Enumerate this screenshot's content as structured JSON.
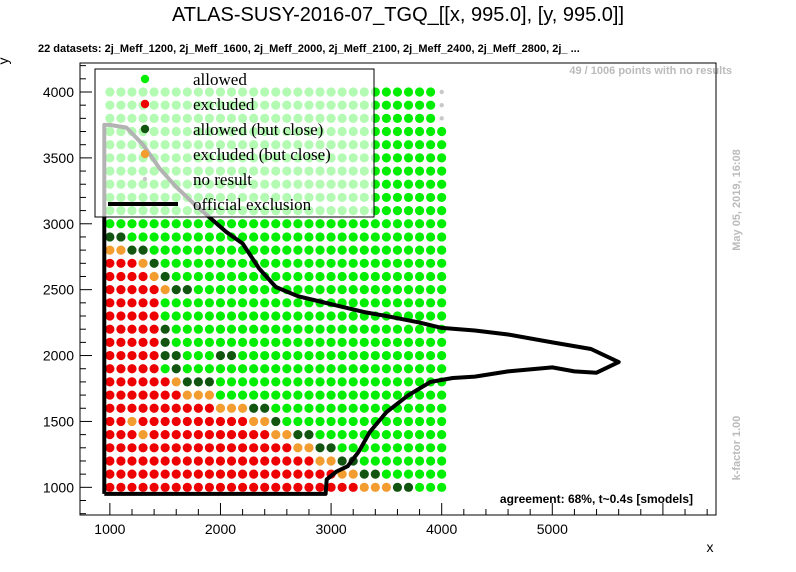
{
  "title": "ATLAS-SUSY-2016-07_TGQ_[[x, 995.0], [y, 995.0]]",
  "subtitle": "22 datasets: 2j_Meff_1200, 2j_Meff_1600, 2j_Meff_2000, 2j_Meff_2100, 2j_Meff_2400, 2j_Meff_2800, 2j_ ...",
  "no_results_note": "49 / 1006 points with no results",
  "date_stamp": "May 05, 2019, 16:08",
  "kfactor": "k-factor 1.00",
  "agreement": "agreement: 68%, t~0.4s [smodels]",
  "colors": {
    "allowed": "#00ee00",
    "excluded": "#ee0000",
    "allowed_close": "#115511",
    "excluded_close": "#f39c30",
    "no_result": "#c8c8c8",
    "official": "#000000"
  },
  "chart_data": {
    "type": "scatter",
    "title": "ATLAS-SUSY-2016-07_TGQ_[[x, 995.0], [y, 995.0]]",
    "xlabel": "x",
    "ylabel": "y",
    "xlim": [
      730,
      6480
    ],
    "ylim": [
      790,
      4220
    ],
    "xticks": [
      "1000",
      "2000",
      "3000",
      "4000",
      "5000"
    ],
    "yticks": [
      "1000",
      "1500",
      "2000",
      "2500",
      "3000",
      "3500",
      "4000"
    ],
    "grid": false,
    "legend_position": "top-left",
    "legend": [
      {
        "key": "allowed",
        "label": "allowed"
      },
      {
        "key": "excluded",
        "label": "excluded"
      },
      {
        "key": "allowed_close",
        "label": "allowed (but close)"
      },
      {
        "key": "excluded_close",
        "label": "excluded (but close)"
      },
      {
        "key": "no_result",
        "label": "no result"
      },
      {
        "key": "official",
        "label": "official exclusion"
      }
    ],
    "grid_points": {
      "x_start": 1000,
      "x_end": 4000,
      "x_step": 100,
      "y_start": 1000,
      "y_end": 4000,
      "y_step": 100
    },
    "excluded_close_points": [
      [
        1000,
        2800
      ],
      [
        1100,
        2800
      ],
      [
        1300,
        2700
      ],
      [
        1400,
        2600
      ],
      [
        1500,
        2500
      ],
      [
        1600,
        1800
      ],
      [
        1700,
        1700
      ],
      [
        1800,
        1700
      ],
      [
        1900,
        1700
      ],
      [
        2000,
        1600
      ],
      [
        2100,
        1600
      ],
      [
        2200,
        1600
      ],
      [
        2300,
        1500
      ],
      [
        2400,
        1500
      ],
      [
        2500,
        1400
      ],
      [
        2600,
        1400
      ],
      [
        2700,
        1300
      ],
      [
        2800,
        1300
      ],
      [
        2900,
        1200
      ],
      [
        3000,
        1200
      ],
      [
        3100,
        1100
      ],
      [
        3200,
        1100
      ],
      [
        3300,
        1000
      ],
      [
        3400,
        1000
      ],
      [
        3500,
        1000
      ],
      [
        1200,
        1500
      ],
      [
        1300,
        1400
      ]
    ],
    "allowed_close_points": [
      [
        1000,
        2900
      ],
      [
        1100,
        2900
      ],
      [
        1200,
        2800
      ],
      [
        1300,
        2800
      ],
      [
        1400,
        2700
      ],
      [
        1500,
        2600
      ],
      [
        1600,
        2500
      ],
      [
        1700,
        2500
      ],
      [
        1500,
        2100
      ],
      [
        1500,
        2000
      ],
      [
        1600,
        1900
      ],
      [
        1700,
        1800
      ],
      [
        1800,
        1800
      ],
      [
        1900,
        1800
      ],
      [
        2000,
        2000
      ],
      [
        2100,
        2000
      ],
      [
        2300,
        1600
      ],
      [
        2400,
        1600
      ],
      [
        2500,
        1500
      ],
      [
        2700,
        1400
      ],
      [
        2800,
        1400
      ],
      [
        2900,
        1300
      ],
      [
        3000,
        1300
      ],
      [
        3100,
        1200
      ],
      [
        3200,
        1200
      ],
      [
        3300,
        1100
      ],
      [
        3400,
        1100
      ],
      [
        3600,
        1000
      ],
      [
        3700,
        1000
      ],
      [
        1500,
        2200
      ],
      [
        1600,
        2000
      ]
    ],
    "no_result_points": [
      [
        4000,
        4000
      ],
      [
        4000,
        3900
      ],
      [
        4000,
        3800
      ]
    ],
    "official_exclusion": {
      "x": [
        950,
        950,
        1000,
        1150,
        1300,
        1450,
        1600,
        1750,
        1900,
        2050,
        2200,
        2350,
        2500,
        2700,
        2900,
        3100,
        3300,
        3500,
        3800,
        4000,
        4300,
        4600,
        5000,
        5350,
        5600,
        5400,
        5200,
        5000,
        4600,
        4300,
        4100,
        3900,
        3700,
        3500,
        3350,
        3250,
        3150,
        3050,
        2960,
        2950,
        950
      ],
      "y": [
        950,
        3750,
        3750,
        3730,
        3600,
        3420,
        3280,
        3160,
        3050,
        2940,
        2850,
        2660,
        2520,
        2450,
        2410,
        2370,
        2330,
        2300,
        2250,
        2210,
        2190,
        2160,
        2100,
        2050,
        1950,
        1870,
        1880,
        1910,
        1880,
        1840,
        1830,
        1800,
        1700,
        1570,
        1420,
        1270,
        1160,
        1120,
        1060,
        950,
        950
      ]
    }
  }
}
